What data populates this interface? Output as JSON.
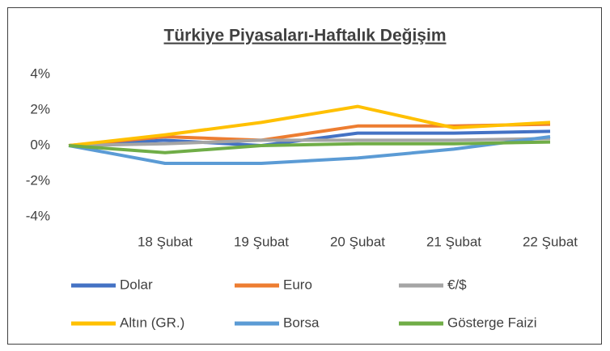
{
  "chart_data": {
    "type": "line",
    "title": "Türkiye Piyasaları-Haftalık Değişim",
    "categories": [
      null,
      "18 Şubat",
      "19 Şubat",
      "20 Şubat",
      "21 Şubat",
      "22 Şubat"
    ],
    "series": [
      {
        "name": "Dolar",
        "color": "#4472c4",
        "values": [
          0,
          0.3,
          0.0,
          0.7,
          0.7,
          0.8
        ]
      },
      {
        "name": "Euro",
        "color": "#ed7d31",
        "values": [
          0,
          0.5,
          0.3,
          1.1,
          1.1,
          1.2
        ]
      },
      {
        "name": "€/$",
        "color": "#a5a5a5",
        "values": [
          0,
          0.1,
          0.3,
          0.3,
          0.3,
          0.4
        ]
      },
      {
        "name": "Altın (GR.)",
        "color": "#ffc000",
        "values": [
          0,
          0.6,
          1.3,
          2.2,
          1.0,
          1.3
        ]
      },
      {
        "name": "Borsa",
        "color": "#5b9bd5",
        "values": [
          0,
          -1.0,
          -1.0,
          -0.7,
          -0.2,
          0.5
        ]
      },
      {
        "name": "Gösterge Faizi",
        "color": "#70ad47",
        "values": [
          0,
          -0.4,
          0.0,
          0.1,
          0.1,
          0.2
        ]
      }
    ],
    "ylim": [
      -4,
      4
    ],
    "yticks": [
      {
        "value": 4,
        "label": "4%"
      },
      {
        "value": 2,
        "label": "2%"
      },
      {
        "value": 0,
        "label": "0%"
      },
      {
        "value": -2,
        "label": "-2%"
      },
      {
        "value": -4,
        "label": "-4%"
      }
    ],
    "grid": false,
    "legend": "bottom"
  }
}
